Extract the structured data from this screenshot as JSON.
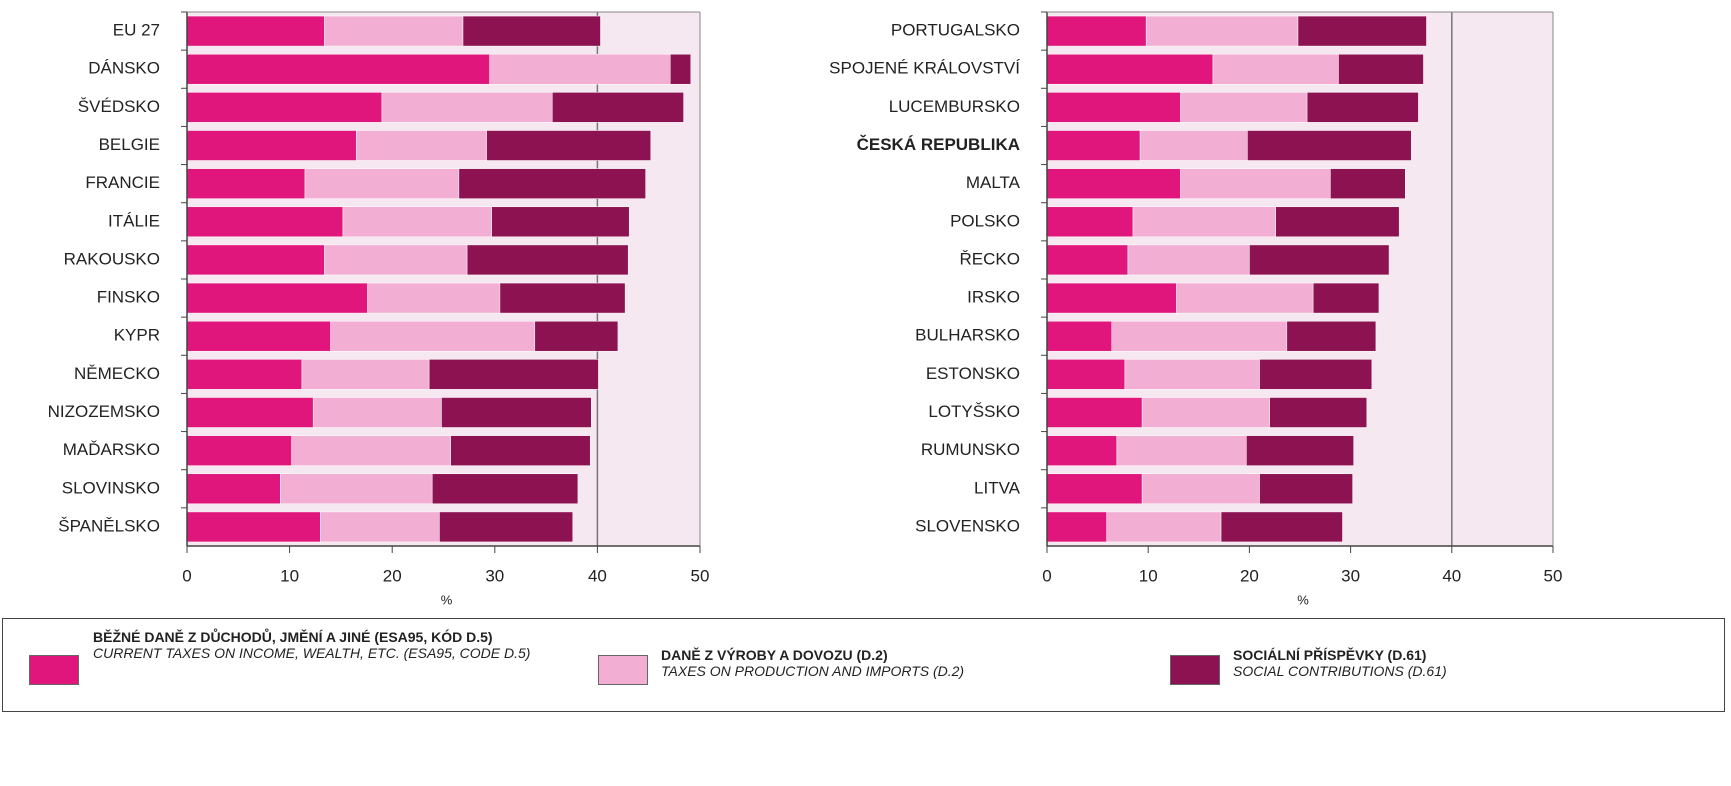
{
  "chart_data": [
    {
      "type": "stacked-barh",
      "xlabel": "%",
      "xlim": [
        0,
        50
      ],
      "xticks": [
        0,
        10,
        20,
        30,
        40,
        50
      ],
      "reference_line": 40,
      "bold_categories": [],
      "categories": [
        "EU 27",
        "DÁNSKO",
        "ŠVÉDSKO",
        "BELGIE",
        "FRANCIE",
        "ITÁLIE",
        "RAKOUSKO",
        "FINSKO",
        "KYPR",
        "NĚMECKO",
        "NIZOZEMSKO",
        "MAĎARSKO",
        "SLOVINSKO",
        "ŠPANĚLSKO"
      ],
      "series": [
        {
          "values": [
            13.4,
            29.5,
            19.0,
            16.5,
            11.5,
            15.2,
            13.4,
            17.6,
            14.0,
            11.2,
            12.3,
            10.2,
            9.1,
            13.0
          ]
        },
        {
          "values": [
            13.5,
            17.6,
            16.6,
            12.7,
            15.0,
            14.5,
            13.9,
            12.9,
            19.9,
            12.4,
            12.5,
            15.5,
            14.8,
            11.6
          ]
        },
        {
          "values": [
            13.4,
            2.0,
            12.8,
            16.0,
            18.2,
            13.4,
            15.7,
            12.2,
            8.1,
            16.5,
            14.6,
            13.6,
            14.2,
            13.0
          ]
        }
      ]
    },
    {
      "type": "stacked-barh",
      "xlabel": "%",
      "xlim": [
        0,
        50
      ],
      "xticks": [
        0,
        10,
        20,
        30,
        40,
        50
      ],
      "reference_line": 40,
      "bold_categories": [
        3
      ],
      "categories": [
        "PORTUGALSKO",
        "SPOJENÉ KRÁLOVSTVÍ",
        "LUCEMBURSKO",
        "ČESKÁ REPUBLIKA",
        "MALTA",
        "POLSKO",
        "ŘECKO",
        "IRSKO",
        "BULHARSKO",
        "ESTONSKO",
        "LOTYŠSKO",
        "RUMUNSKO",
        "LITVA",
        "SLOVENSKO"
      ],
      "series": [
        {
          "values": [
            9.8,
            16.4,
            13.2,
            9.2,
            13.2,
            8.5,
            8.0,
            12.8,
            6.4,
            7.7,
            9.4,
            6.9,
            9.4,
            5.9
          ]
        },
        {
          "values": [
            15.0,
            12.4,
            12.5,
            10.6,
            14.8,
            14.1,
            12.0,
            13.5,
            17.3,
            13.3,
            12.6,
            12.8,
            11.6,
            11.3
          ]
        },
        {
          "values": [
            12.7,
            8.4,
            11.0,
            16.2,
            7.4,
            12.2,
            13.8,
            6.5,
            8.8,
            11.1,
            9.6,
            10.6,
            9.2,
            12.0
          ]
        }
      ]
    }
  ],
  "legend": [
    {
      "name": "BĚŽNÉ DANĚ Z DŮCHODŮ, JMĚNÍ A JINÉ (ESA95, KÓD D.5)",
      "name_en": "CURRENT TAXES ON INCOME, WEALTH, ETC. (ESA95, CODE D.5)",
      "color": "#e0167c"
    },
    {
      "name": "DANĚ Z VÝROBY A DOVOZU (D.2)",
      "name_en": "TAXES ON PRODUCTION  AND IMPORTS (D.2)",
      "color": "#f3aed3"
    },
    {
      "name": "SOCIÁLNÍ PŘÍSPĚVKY (D.61)",
      "name_en": "SOCIAL CONTRIBUTIONS (D.61)",
      "color": "#8c1252"
    }
  ]
}
